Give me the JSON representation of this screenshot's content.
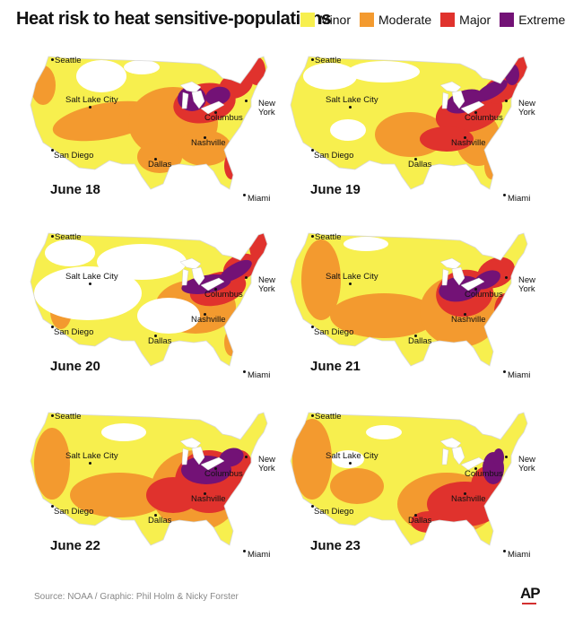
{
  "title": "Heat risk to heat sensitive-populations",
  "legend": [
    {
      "label": "Minor",
      "color": "#f7ef4e"
    },
    {
      "label": "Moderate",
      "color": "#f39a2f"
    },
    {
      "label": "Major",
      "color": "#e0322d"
    },
    {
      "label": "Extreme",
      "color": "#731276"
    }
  ],
  "cities": {
    "seattle": "Seattle",
    "salt_lake_city": "Salt Lake City",
    "san_diego": "San Diego",
    "dallas": "Dallas",
    "nashville": "Nashville",
    "columbus": "Columbus",
    "new_york_line1": "New",
    "new_york_line2": "York",
    "miami": "Miami"
  },
  "panels": [
    {
      "date": "June 18"
    },
    {
      "date": "June 19"
    },
    {
      "date": "June 20"
    },
    {
      "date": "June 21"
    },
    {
      "date": "June 22"
    },
    {
      "date": "June 23"
    }
  ],
  "source": "Source: NOAA / Graphic: Phil Holm & Nicky Forster",
  "logo": "AP"
}
